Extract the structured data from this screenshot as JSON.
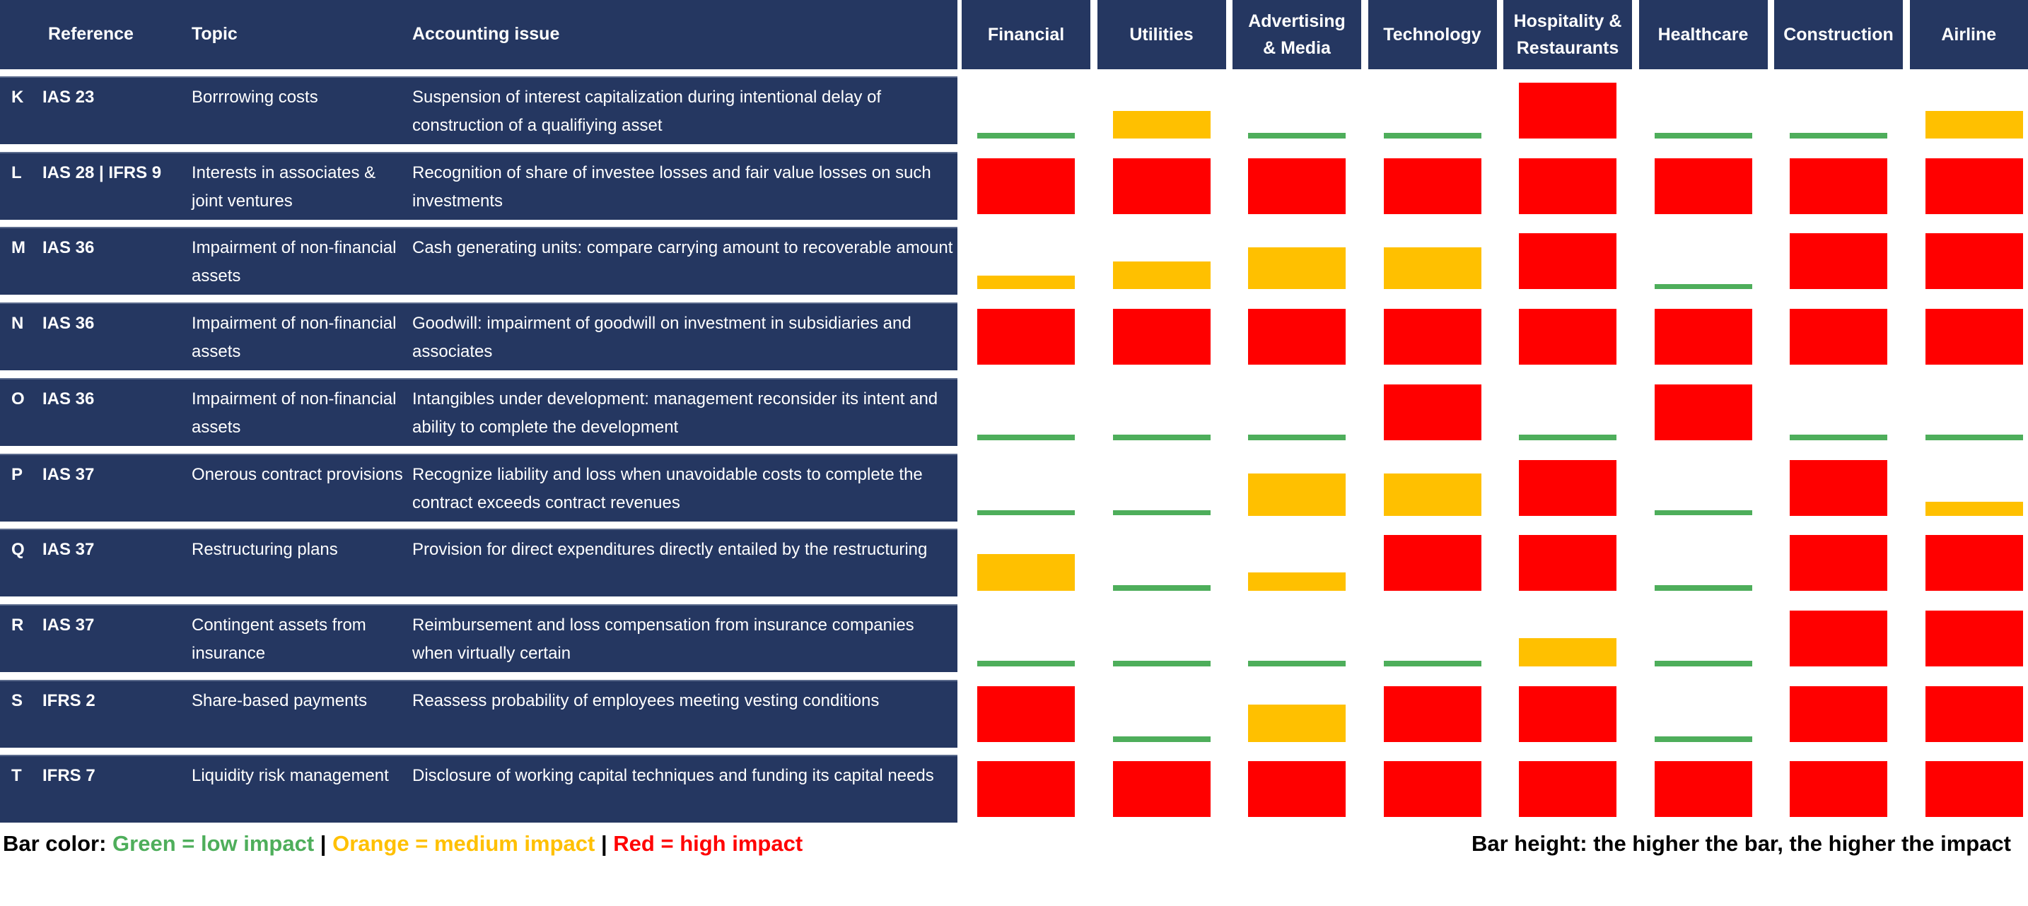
{
  "headers": {
    "reference": "Reference",
    "topic": "Topic",
    "issue": "Accounting issue"
  },
  "colors": {
    "header_bg": "#253761",
    "low": "#4EAE5B",
    "medium": "#FFC000",
    "high": "#FF0000"
  },
  "chart_data": {
    "type": "bar",
    "title": "",
    "categories": [
      "Financial",
      "Utilities",
      "Advertising & Media",
      "Technology",
      "Hospitality & Restaurants",
      "Healthcare",
      "Construction",
      "Airline"
    ],
    "category_lines": [
      [
        "Financial"
      ],
      [
        "Utilities"
      ],
      [
        "Advertising",
        "& Media"
      ],
      [
        "Technology"
      ],
      [
        "Hospitality &",
        "Restaurants"
      ],
      [
        "Healthcare"
      ],
      [
        "Construction"
      ],
      [
        "Airline"
      ]
    ],
    "ylim": [
      0,
      1
    ],
    "rows": [
      {
        "letter": "K",
        "reference": "IAS 23",
        "topic": "Borrrowing costs",
        "issue": "Suspension of interest capitalization during intentional delay of construction of a qualifiying asset",
        "levels": [
          "low",
          "medium",
          "low",
          "low",
          "high",
          "low",
          "low",
          "medium"
        ],
        "values": [
          0.1,
          0.5,
          0.1,
          0.1,
          1,
          0.1,
          0.1,
          0.5
        ]
      },
      {
        "letter": "L",
        "reference": "IAS 28 | IFRS 9",
        "topic": "Interests in associates & joint ventures",
        "issue": "Recognition of share of investee losses and fair value losses on such investments",
        "levels": [
          "high",
          "high",
          "high",
          "high",
          "high",
          "high",
          "high",
          "high"
        ],
        "values": [
          1,
          1,
          1,
          1,
          1,
          1,
          1,
          1
        ]
      },
      {
        "letter": "M",
        "reference": "IAS 36",
        "topic": "Impairment of non-financial assets",
        "issue": "Cash generating units: compare carrying amount to recoverable amount",
        "levels": [
          "medium",
          "medium",
          "medium",
          "medium",
          "high",
          "low",
          "high",
          "high"
        ],
        "values": [
          0.25,
          0.5,
          0.75,
          0.75,
          1,
          0.1,
          1,
          1
        ]
      },
      {
        "letter": "N",
        "reference": "IAS 36",
        "topic": "Impairment of non-financial assets",
        "issue": "Goodwill: impairment of goodwill on investment in subsidiaries and associates",
        "levels": [
          "high",
          "high",
          "high",
          "high",
          "high",
          "high",
          "high",
          "high"
        ],
        "values": [
          1,
          1,
          1,
          1,
          1,
          1,
          1,
          1
        ]
      },
      {
        "letter": "O",
        "reference": "IAS 36",
        "topic": "Impairment of non-financial assets",
        "issue": "Intangibles under development: management reconsider its intent and ability to complete the development",
        "levels": [
          "low",
          "low",
          "low",
          "high",
          "low",
          "high",
          "low",
          "low"
        ],
        "values": [
          0.1,
          0.1,
          0.1,
          1,
          0.1,
          1,
          0.1,
          0.1
        ]
      },
      {
        "letter": "P",
        "reference": "IAS 37",
        "topic": "Onerous contract provisions",
        "issue": "Recognize liability and loss when unavoidable costs to complete the contract exceeds contract revenues",
        "levels": [
          "low",
          "low",
          "medium",
          "medium",
          "high",
          "low",
          "high",
          "medium"
        ],
        "values": [
          0.1,
          0.1,
          0.75,
          0.75,
          1,
          0.1,
          1,
          0.25
        ]
      },
      {
        "letter": "Q",
        "reference": "IAS 37",
        "topic": "Restructuring plans",
        "issue": "Provision for direct expenditures directly entailed by the restructuring",
        "levels": [
          "medium",
          "low",
          "medium",
          "high",
          "high",
          "low",
          "high",
          "high"
        ],
        "values": [
          0.66,
          0.1,
          0.33,
          1,
          1,
          0.1,
          1,
          1
        ]
      },
      {
        "letter": "R",
        "reference": "IAS 37",
        "topic": "Contingent assets from insurance",
        "issue": "Reimbursement and loss compensation from insurance companies when virtually certain",
        "levels": [
          "low",
          "low",
          "low",
          "low",
          "medium",
          "low",
          "high",
          "high"
        ],
        "values": [
          0.1,
          0.1,
          0.1,
          0.1,
          0.5,
          0.1,
          1,
          1
        ]
      },
      {
        "letter": "S",
        "reference": "IFRS 2",
        "topic": "Share-based payments",
        "issue": "Reassess probability of employees meeting vesting conditions",
        "levels": [
          "high",
          "low",
          "medium",
          "high",
          "high",
          "low",
          "high",
          "high"
        ],
        "values": [
          1,
          0.1,
          0.66,
          1,
          1,
          0.1,
          1,
          1
        ]
      },
      {
        "letter": "T",
        "reference": "IFRS 7",
        "topic": "Liquidity risk management",
        "issue": "Disclosure of working capital techniques and funding its capital needs",
        "levels": [
          "high",
          "high",
          "high",
          "high",
          "high",
          "high",
          "high",
          "high"
        ],
        "values": [
          1,
          1,
          1,
          1,
          1,
          1,
          1,
          1
        ]
      }
    ]
  },
  "legend": {
    "color_label": "Bar color:",
    "low": "Green = low impact",
    "sep": "|",
    "medium": "Orange = medium impact",
    "high": "Red = high impact",
    "height_note": "Bar height: the higher the bar, the higher the impact"
  }
}
